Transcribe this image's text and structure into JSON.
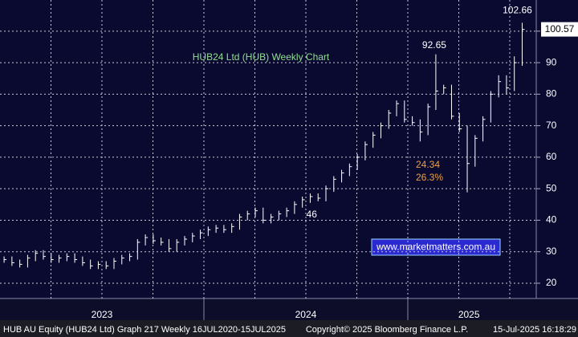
{
  "chart_data": {
    "type": "ohlc",
    "title": "HUB24 Ltd (HUB) Weekly Chart",
    "website": "www.marketmatters.com.au",
    "annotations": [
      "24.34",
      "26.3%"
    ],
    "footer": {
      "left": "HUB AU Equity (HUB24 Ltd) Graph 217  Weekly 16JUL2020-15JUL2025",
      "middle": "Copyright© 2025 Bloomberg Finance L.P.",
      "right": "15-Jul-2025 16:18:29"
    },
    "color": "#ffffff",
    "grid": true,
    "x": [
      2023.02,
      2023.0585,
      2023.097,
      2023.1355,
      2023.174,
      2023.2125,
      2023.251,
      2023.2895,
      2023.328,
      2023.3665,
      2023.405,
      2023.4435,
      2023.482,
      2023.5205,
      2023.559,
      2023.5975,
      2023.636,
      2023.6745,
      2023.713,
      2023.7515,
      2023.79,
      2023.8285,
      2023.867,
      2023.9055,
      2023.944,
      2023.9825,
      2024.021,
      2024.0595,
      2024.098,
      2024.1365,
      2024.175,
      2024.2135,
      2024.252,
      2024.2905,
      2024.329,
      2024.3675,
      2024.406,
      2024.4445,
      2024.483,
      2024.5215,
      2024.56,
      2024.5985,
      2024.637,
      2024.6755,
      2024.714,
      2024.7525,
      2024.791,
      2024.8295,
      2024.868,
      2024.9065,
      2024.945,
      2024.9835,
      2025.022,
      2025.0605,
      2025.099,
      2025.1375,
      2025.176,
      2025.2145,
      2025.253,
      2025.2915,
      2025.33,
      2025.3685,
      2025.407,
      2025.4455,
      2025.484,
      2025.5225,
      2025.561
    ],
    "high": [
      28.5,
      28.5,
      27.5,
      29,
      30.5,
      30.5,
      29.5,
      29,
      29.5,
      29.5,
      28.5,
      27.5,
      27,
      27,
      28,
      29,
      29.5,
      34,
      35.5,
      35.5,
      34.5,
      34,
      34,
      35,
      36,
      37,
      38,
      38.5,
      38.5,
      39,
      42,
      43,
      44,
      44,
      42,
      43,
      44,
      46,
      47.5,
      48.5,
      48.5,
      51,
      54,
      56,
      58,
      61,
      65,
      68,
      71,
      75,
      78,
      78,
      73,
      72,
      77,
      92.65,
      83,
      83,
      74,
      70,
      67,
      73,
      81,
      86,
      86,
      92,
      102.66
    ],
    "low": [
      26.5,
      25.5,
      25,
      25,
      27,
      27.5,
      26.5,
      26.5,
      27,
      26.5,
      25.5,
      24.5,
      24.5,
      24.5,
      24.5,
      26,
      27,
      27.5,
      32,
      32.5,
      32,
      30,
      30,
      32,
      33,
      34,
      35,
      36,
      36,
      36,
      37,
      40,
      41,
      39,
      39,
      40,
      41,
      42,
      44,
      45.5,
      46,
      46,
      49,
      52,
      54,
      56,
      59,
      63,
      66,
      69,
      73,
      71,
      70,
      65,
      67,
      75,
      80,
      72,
      68,
      48.84,
      57,
      65,
      71,
      79,
      80,
      81,
      89
    ],
    "close": [
      27.5,
      26.5,
      26,
      28,
      29.5,
      28.5,
      27.5,
      28,
      28.5,
      27.5,
      26.5,
      25.5,
      26,
      25.5,
      27,
      28,
      28.5,
      33,
      34.5,
      33.5,
      33,
      31,
      33,
      34,
      35,
      36,
      37,
      37.5,
      37,
      38,
      41,
      42,
      43,
      40,
      41,
      42,
      43,
      45,
      46.5,
      47.5,
      47,
      50,
      53,
      55,
      57,
      60,
      64,
      67,
      70,
      74,
      77,
      72,
      71,
      68,
      76,
      81,
      82,
      73,
      69,
      58,
      66,
      72,
      80,
      84,
      82,
      90,
      100.57
    ],
    "xlim": [
      2023,
      2025.63
    ],
    "xgrid": [
      2023.25,
      2023.5,
      2023.75,
      2024,
      2024.25,
      2024.5,
      2024.75,
      2025,
      2025.25,
      2025.5
    ],
    "period_breaks": [
      2024,
      2025
    ],
    "xticks": [
      {
        "value": 2023.5,
        "label": "2023"
      },
      {
        "value": 2024.5,
        "label": "2024"
      },
      {
        "value": 2025.3,
        "label": "2025"
      }
    ],
    "ylim": [
      15.16,
      109.89
    ],
    "yticks": [
      20,
      30,
      40,
      50,
      60,
      70,
      80,
      90,
      100
    ]
  }
}
